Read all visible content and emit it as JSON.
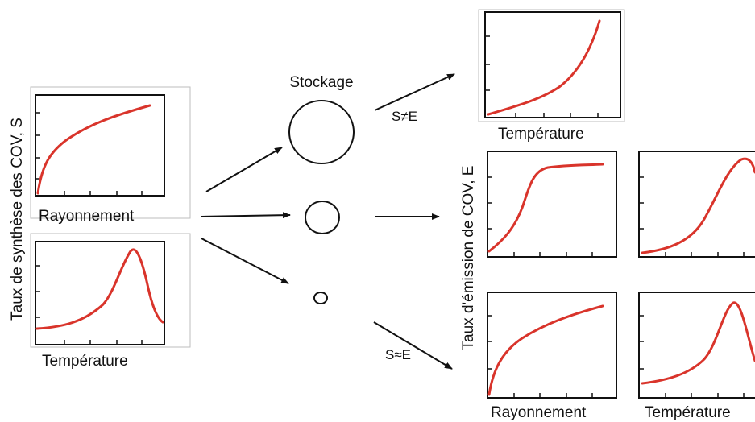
{
  "colors": {
    "curve": "#d9342b",
    "ink": "#111111"
  },
  "left": {
    "y_label": "Taux de synthèse des COV, S",
    "panels": [
      {
        "id": "synthesis-radiation",
        "x_label": "Rayonnement",
        "shape": "saturating"
      },
      {
        "id": "synthesis-temperature",
        "x_label": "Température",
        "shape": "optimum"
      }
    ]
  },
  "middle": {
    "storage_label": "Stockage",
    "pools": [
      {
        "id": "large",
        "size": "large"
      },
      {
        "id": "medium",
        "size": "medium"
      },
      {
        "id": "small",
        "size": "small"
      }
    ],
    "relation_unequal": "S≠E",
    "relation_equal": "S≈E"
  },
  "right": {
    "y_label": "Taux d'émission de COV, E",
    "panels": [
      {
        "id": "emission-temperature-top",
        "x_label": "Température",
        "shape": "exponential"
      },
      {
        "id": "emission-radiation-mid",
        "x_label": "",
        "shape": "sigmoid"
      },
      {
        "id": "emission-temperature-mid",
        "x_label": "",
        "shape": "optimum-late"
      },
      {
        "id": "emission-radiation-bottom",
        "x_label": "Rayonnement",
        "shape": "saturating"
      },
      {
        "id": "emission-temperature-bottom",
        "x_label": "Température",
        "shape": "optimum"
      }
    ]
  }
}
